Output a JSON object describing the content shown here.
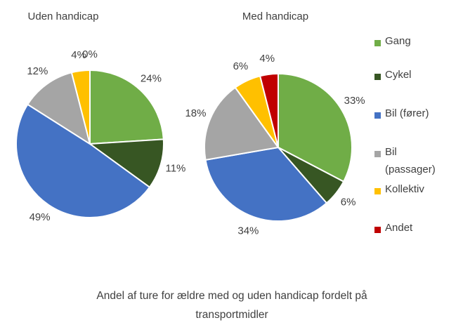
{
  "chart_data": [
    {
      "type": "pie",
      "title": "Uden handicap",
      "categories": [
        "Gang",
        "Cykel",
        "Bil (fører)",
        "Bil (passager)",
        "Kollektiv",
        "Andet"
      ],
      "values": [
        24,
        11,
        49,
        12,
        4,
        0
      ],
      "value_labels": [
        "24%",
        "11%",
        "49%",
        "12%",
        "4%",
        "0%"
      ],
      "colors": [
        "#70ad47",
        "#375623",
        "#4472c4",
        "#a5a5a5",
        "#ffc000",
        "#c00000"
      ]
    },
    {
      "type": "pie",
      "title": "Med handicap",
      "categories": [
        "Gang",
        "Cykel",
        "Bil (fører)",
        "Bil (passager)",
        "Kollektiv",
        "Andet"
      ],
      "values": [
        33,
        6,
        34,
        18,
        6,
        4
      ],
      "value_labels": [
        "33%",
        "6%",
        "34%",
        "18%",
        "6%",
        "4%"
      ],
      "colors": [
        "#70ad47",
        "#375623",
        "#4472c4",
        "#a5a5a5",
        "#ffc000",
        "#c00000"
      ]
    }
  ],
  "legend": "right",
  "caption": "Andel af ture for ældre med og uden handicap fordelt på transportmidler"
}
